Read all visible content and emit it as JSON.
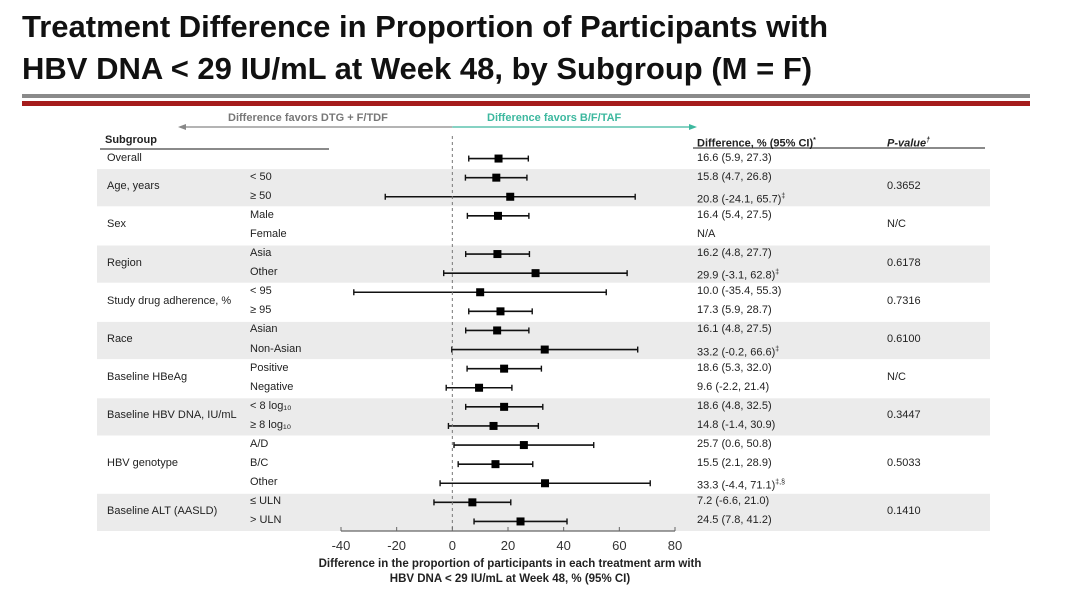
{
  "title": [
    "Treatment Difference in Proportion of Participants with",
    "HBV DNA < 29 IU/mL at Week 48, by Subgroup (M = F)"
  ],
  "colors": {
    "accent_red": "#a51c1c",
    "rule_gray": "#8a8a8a",
    "favors_right": "#3db89f",
    "favors_left": "#777777",
    "band": "#ebebeb"
  },
  "chart_data": {
    "type": "forest",
    "favors_left": "Difference favors DTG + F/TDF",
    "favors_right": "Difference favors B/F/TAF",
    "headers": {
      "subgroup": "Subgroup",
      "difference": "Difference, % (95% CI)",
      "difference_note": "*",
      "pvalue": "P-value",
      "pvalue_note": "†"
    },
    "xlim": [
      -40,
      80
    ],
    "xticks": [
      "-40",
      "-20",
      "0",
      "20",
      "40",
      "60",
      "80"
    ],
    "reference_line": 0,
    "xlabel": [
      "Difference in the proportion of participants in each treatment arm with",
      "HBV DNA < 29 IU/mL at Week 48, % (95% CI)"
    ],
    "groups": [
      {
        "name": "Overall",
        "pvalue": "",
        "rows": [
          {
            "label": "",
            "diff": "16.6 (5.9, 27.3)",
            "note": "",
            "est": 16.6,
            "lo": 5.9,
            "hi": 27.3
          }
        ]
      },
      {
        "name": "Age, years",
        "pvalue": "0.3652",
        "rows": [
          {
            "label": "< 50",
            "diff": "15.8 (4.7, 26.8)",
            "note": "",
            "est": 15.8,
            "lo": 4.7,
            "hi": 26.8
          },
          {
            "label": "≥ 50",
            "diff": "20.8 (-24.1, 65.7)",
            "note": "‡",
            "est": 20.8,
            "lo": -24.1,
            "hi": 65.7
          }
        ]
      },
      {
        "name": "Sex",
        "pvalue": "N/C",
        "rows": [
          {
            "label": "Male",
            "diff": "16.4 (5.4, 27.5)",
            "note": "",
            "est": 16.4,
            "lo": 5.4,
            "hi": 27.5
          },
          {
            "label": "Female",
            "diff": "N/A",
            "note": "",
            "est": null,
            "lo": null,
            "hi": null
          }
        ]
      },
      {
        "name": "Region",
        "pvalue": "0.6178",
        "rows": [
          {
            "label": "Asia",
            "diff": "16.2 (4.8, 27.7)",
            "note": "",
            "est": 16.2,
            "lo": 4.8,
            "hi": 27.7
          },
          {
            "label": "Other",
            "diff": "29.9 (-3.1, 62.8)",
            "note": "‡",
            "est": 29.9,
            "lo": -3.1,
            "hi": 62.8
          }
        ]
      },
      {
        "name": "Study drug adherence, %",
        "pvalue": "0.7316",
        "rows": [
          {
            "label": "< 95",
            "diff": "10.0 (-35.4, 55.3)",
            "note": "",
            "est": 10.0,
            "lo": -35.4,
            "hi": 55.3
          },
          {
            "label": "≥ 95",
            "diff": "17.3 (5.9, 28.7)",
            "note": "",
            "est": 17.3,
            "lo": 5.9,
            "hi": 28.7
          }
        ]
      },
      {
        "name": "Race",
        "pvalue": "0.6100",
        "rows": [
          {
            "label": "Asian",
            "diff": "16.1 (4.8, 27.5)",
            "note": "",
            "est": 16.1,
            "lo": 4.8,
            "hi": 27.5
          },
          {
            "label": "Non-Asian",
            "diff": "33.2 (-0.2, 66.6)",
            "note": "‡",
            "est": 33.2,
            "lo": -0.2,
            "hi": 66.6
          }
        ]
      },
      {
        "name": "Baseline HBeAg",
        "pvalue": "N/C",
        "rows": [
          {
            "label": "Positive",
            "diff": "18.6 (5.3, 32.0)",
            "note": "",
            "est": 18.6,
            "lo": 5.3,
            "hi": 32.0
          },
          {
            "label": "Negative",
            "diff": "9.6 (-2.2, 21.4)",
            "note": "",
            "est": 9.6,
            "lo": -2.2,
            "hi": 21.4
          }
        ]
      },
      {
        "name": "Baseline HBV DNA, IU/mL",
        "pvalue": "0.3447",
        "rows": [
          {
            "label": "< 8 log₁₀",
            "diff": "18.6 (4.8, 32.5)",
            "note": "",
            "est": 18.6,
            "lo": 4.8,
            "hi": 32.5
          },
          {
            "label": "≥ 8 log₁₀",
            "diff": "14.8 (-1.4, 30.9)",
            "note": "",
            "est": 14.8,
            "lo": -1.4,
            "hi": 30.9
          }
        ]
      },
      {
        "name": "HBV genotype",
        "pvalue": "0.5033",
        "rows": [
          {
            "label": "A/D",
            "diff": "25.7 (0.6, 50.8)",
            "note": "",
            "est": 25.7,
            "lo": 0.6,
            "hi": 50.8
          },
          {
            "label": "B/C",
            "diff": "15.5 (2.1, 28.9)",
            "note": "",
            "est": 15.5,
            "lo": 2.1,
            "hi": 28.9
          },
          {
            "label": "Other",
            "diff": "33.3 (-4.4, 71.1)",
            "note": "‡,§",
            "est": 33.3,
            "lo": -4.4,
            "hi": 71.1
          }
        ]
      },
      {
        "name": "Baseline ALT (AASLD)",
        "pvalue": "0.1410",
        "rows": [
          {
            "label": "≤ ULN",
            "diff": "7.2 (-6.6, 21.0)",
            "note": "",
            "est": 7.2,
            "lo": -6.6,
            "hi": 21.0
          },
          {
            "label": "> ULN",
            "diff": "24.5 (7.8, 41.2)",
            "note": "",
            "est": 24.5,
            "lo": 7.8,
            "hi": 41.2
          }
        ]
      }
    ]
  }
}
